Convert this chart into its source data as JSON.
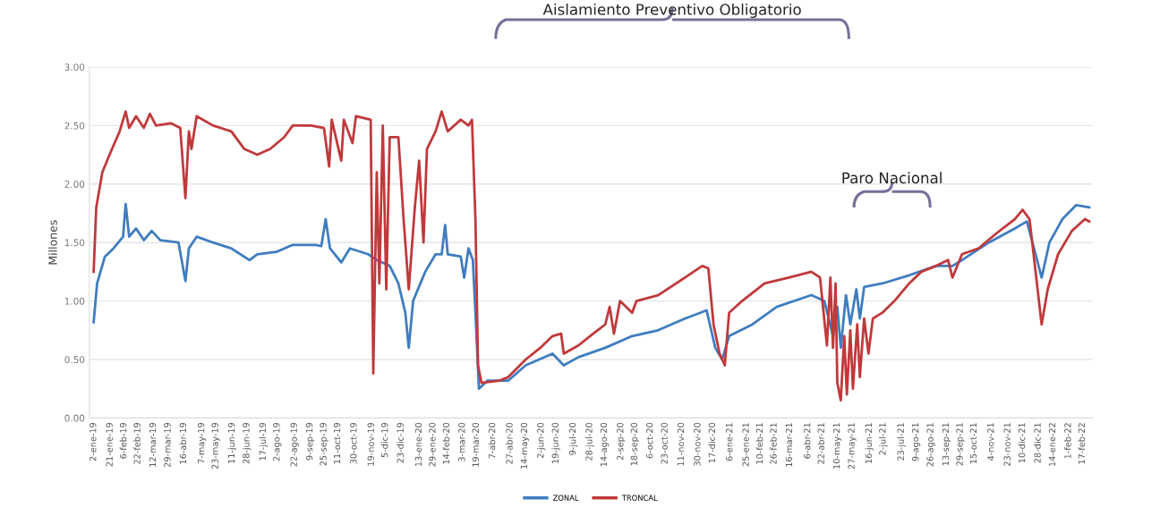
{
  "chart_data": {
    "type": "line",
    "ylabel": "Millones",
    "annotations": [
      "Aislamiento Preventivo Obligatorio",
      "Paro Nacional"
    ],
    "ylim": [
      0,
      3
    ],
    "yticks": [
      {
        "value": 0,
        "label": "0.00"
      },
      {
        "value": 0.5,
        "label": "0.50"
      },
      {
        "value": 1,
        "label": "1.00"
      },
      {
        "value": 1.5,
        "label": "1.50"
      },
      {
        "value": 2,
        "label": "2.00"
      },
      {
        "value": 2.5,
        "label": "2.50"
      },
      {
        "value": 3,
        "label": "3.00"
      }
    ],
    "xlim": [
      "2018-12-28",
      "2022-03-01"
    ],
    "xticks": [
      {
        "value": "2019-01-02",
        "label": "2-ene-19"
      },
      {
        "value": "2019-01-21",
        "label": "21-ene-19"
      },
      {
        "value": "2019-02-06",
        "label": "6-feb-19"
      },
      {
        "value": "2019-02-22",
        "label": "22-feb-19"
      },
      {
        "value": "2019-03-12",
        "label": "12-mar-19"
      },
      {
        "value": "2019-03-29",
        "label": "29-mar-19"
      },
      {
        "value": "2019-04-16",
        "label": "16-abr-19"
      },
      {
        "value": "2019-05-07",
        "label": "7-may-19"
      },
      {
        "value": "2019-05-23",
        "label": "23-may-19"
      },
      {
        "value": "2019-06-11",
        "label": "11-jun-19"
      },
      {
        "value": "2019-06-28",
        "label": "28-jun-19"
      },
      {
        "value": "2019-07-17",
        "label": "17-jul-19"
      },
      {
        "value": "2019-08-02",
        "label": "2-ago-19"
      },
      {
        "value": "2019-08-22",
        "label": "22-ago-19"
      },
      {
        "value": "2019-09-09",
        "label": "9-sep-19"
      },
      {
        "value": "2019-09-25",
        "label": "25-sep-19"
      },
      {
        "value": "2019-10-11",
        "label": "11-oct-19"
      },
      {
        "value": "2019-10-30",
        "label": "30-oct-19"
      },
      {
        "value": "2019-11-19",
        "label": "19-nov-19"
      },
      {
        "value": "2019-12-05",
        "label": "5-dic-19"
      },
      {
        "value": "2019-12-23",
        "label": "23-dic-19"
      },
      {
        "value": "2020-01-13",
        "label": "13-ene-20"
      },
      {
        "value": "2020-01-29",
        "label": "29-ene-20"
      },
      {
        "value": "2020-02-14",
        "label": "14-feb-20"
      },
      {
        "value": "2020-03-03",
        "label": "3-mar-20"
      },
      {
        "value": "2020-03-19",
        "label": "19-mar-20"
      },
      {
        "value": "2020-04-07",
        "label": "7-abr-20"
      },
      {
        "value": "2020-04-27",
        "label": "27-abr-20"
      },
      {
        "value": "2020-05-14",
        "label": "14-may-20"
      },
      {
        "value": "2020-06-02",
        "label": "2-jun-20"
      },
      {
        "value": "2020-06-19",
        "label": "19-jun-20"
      },
      {
        "value": "2020-07-09",
        "label": "9-jul-20"
      },
      {
        "value": "2020-07-28",
        "label": "28-jul-20"
      },
      {
        "value": "2020-08-14",
        "label": "14-ago-20"
      },
      {
        "value": "2020-09-02",
        "label": "2-sep-20"
      },
      {
        "value": "2020-09-18",
        "label": "18-sep-20"
      },
      {
        "value": "2020-10-06",
        "label": "6-oct-20"
      },
      {
        "value": "2020-10-23",
        "label": "23-oct-20"
      },
      {
        "value": "2020-11-11",
        "label": "11-nov-20"
      },
      {
        "value": "2020-11-30",
        "label": "30-nov-20"
      },
      {
        "value": "2020-12-17",
        "label": "17-dic-20"
      },
      {
        "value": "2021-01-06",
        "label": "6-ene-21"
      },
      {
        "value": "2021-01-25",
        "label": "25-ene-21"
      },
      {
        "value": "2021-02-10",
        "label": "10-feb-21"
      },
      {
        "value": "2021-02-26",
        "label": "26-feb-21"
      },
      {
        "value": "2021-03-16",
        "label": "16-mar-21"
      },
      {
        "value": "2021-04-06",
        "label": "6-abr-21"
      },
      {
        "value": "2021-04-22",
        "label": "22-abr-21"
      },
      {
        "value": "2021-05-10",
        "label": "10-may-21"
      },
      {
        "value": "2021-05-27",
        "label": "27-may-21"
      },
      {
        "value": "2021-06-16",
        "label": "16-jun-21"
      },
      {
        "value": "2021-07-02",
        "label": "2-jul-21"
      },
      {
        "value": "2021-07-23",
        "label": "23-jul-21"
      },
      {
        "value": "2021-08-09",
        "label": "9-ago-21"
      },
      {
        "value": "2021-08-26",
        "label": "26-ago-21"
      },
      {
        "value": "2021-09-13",
        "label": "13-sep-21"
      },
      {
        "value": "2021-09-29",
        "label": "29-sep-21"
      },
      {
        "value": "2021-10-15",
        "label": "15-oct-21"
      },
      {
        "value": "2021-11-04",
        "label": "4-nov-21"
      },
      {
        "value": "2021-11-23",
        "label": "23-nov-21"
      },
      {
        "value": "2021-12-10",
        "label": "10-dic-21"
      },
      {
        "value": "2021-12-28",
        "label": "28-dic-21"
      },
      {
        "value": "2022-01-14",
        "label": "14-ene-22"
      },
      {
        "value": "2022-02-01",
        "label": "1-feb-22"
      },
      {
        "value": "2022-02-17",
        "label": "17-feb-22"
      }
    ],
    "grid": "y",
    "legend": "bottom",
    "marker": "none",
    "line_style": "solid",
    "series": [
      {
        "name": "ZONAL",
        "color": "#3f7dc0",
        "x": [
          "2019-01-02",
          "2019-01-06",
          "2019-01-15",
          "2019-01-25",
          "2019-02-05",
          "2019-02-08",
          "2019-02-12",
          "2019-02-20",
          "2019-03-01",
          "2019-03-10",
          "2019-03-20",
          "2019-04-10",
          "2019-04-18",
          "2019-04-22",
          "2019-05-01",
          "2019-05-20",
          "2019-06-10",
          "2019-07-01",
          "2019-07-10",
          "2019-08-01",
          "2019-08-20",
          "2019-09-15",
          "2019-09-22",
          "2019-09-27",
          "2019-10-02",
          "2019-10-15",
          "2019-10-25",
          "2019-11-15",
          "2019-11-25",
          "2019-12-10",
          "2019-12-20",
          "2019-12-28",
          "2020-01-01",
          "2020-01-06",
          "2020-01-20",
          "2020-02-01",
          "2020-02-08",
          "2020-02-12",
          "2020-02-15",
          "2020-03-01",
          "2020-03-05",
          "2020-03-10",
          "2020-03-15",
          "2020-03-18",
          "2020-03-22",
          "2020-04-01",
          "2020-04-25",
          "2020-05-15",
          "2020-06-15",
          "2020-06-28",
          "2020-07-15",
          "2020-08-15",
          "2020-09-15",
          "2020-10-15",
          "2020-11-15",
          "2020-12-10",
          "2020-12-20",
          "2020-12-28",
          "2021-01-05",
          "2021-02-01",
          "2021-03-01",
          "2021-04-10",
          "2021-04-25",
          "2021-05-05",
          "2021-05-10",
          "2021-05-14",
          "2021-05-20",
          "2021-05-25",
          "2021-06-01",
          "2021-06-05",
          "2021-06-10",
          "2021-07-01",
          "2021-08-01",
          "2021-09-01",
          "2021-09-20",
          "2021-10-01",
          "2021-11-01",
          "2021-12-01",
          "2021-12-15",
          "2021-12-25",
          "2022-01-01",
          "2022-01-10",
          "2022-01-25",
          "2022-02-10",
          "2022-02-25"
        ],
        "values": [
          0.82,
          1.15,
          1.38,
          1.45,
          1.55,
          1.83,
          1.55,
          1.62,
          1.52,
          1.6,
          1.52,
          1.5,
          1.17,
          1.45,
          1.55,
          1.5,
          1.45,
          1.35,
          1.4,
          1.42,
          1.48,
          1.48,
          1.47,
          1.7,
          1.45,
          1.33,
          1.45,
          1.4,
          1.35,
          1.3,
          1.15,
          0.9,
          0.6,
          1.0,
          1.25,
          1.4,
          1.4,
          1.65,
          1.4,
          1.38,
          1.2,
          1.45,
          1.35,
          0.9,
          0.25,
          0.32,
          0.32,
          0.45,
          0.55,
          0.45,
          0.52,
          0.6,
          0.7,
          0.75,
          0.85,
          0.92,
          0.6,
          0.5,
          0.7,
          0.8,
          0.95,
          1.05,
          1.0,
          0.7,
          0.95,
          0.6,
          1.05,
          0.8,
          1.1,
          0.85,
          1.12,
          1.15,
          1.22,
          1.3,
          1.3,
          1.35,
          1.5,
          1.62,
          1.68,
          1.4,
          1.2,
          1.5,
          1.7,
          1.82,
          1.8
        ]
      },
      {
        "name": "TRONCAL",
        "color": "#c0393b",
        "x": [
          "2019-01-02",
          "2019-01-05",
          "2019-01-12",
          "2019-01-22",
          "2019-02-01",
          "2019-02-08",
          "2019-02-12",
          "2019-02-20",
          "2019-03-01",
          "2019-03-08",
          "2019-03-15",
          "2019-04-01",
          "2019-04-12",
          "2019-04-18",
          "2019-04-22",
          "2019-04-25",
          "2019-05-01",
          "2019-05-20",
          "2019-06-10",
          "2019-06-25",
          "2019-07-10",
          "2019-07-25",
          "2019-08-10",
          "2019-08-20",
          "2019-09-10",
          "2019-09-25",
          "2019-10-01",
          "2019-10-04",
          "2019-10-15",
          "2019-10-18",
          "2019-10-28",
          "2019-11-01",
          "2019-11-18",
          "2019-11-21",
          "2019-11-25",
          "2019-11-28",
          "2019-12-02",
          "2019-12-06",
          "2019-12-10",
          "2019-12-20",
          "2019-12-26",
          "2020-01-01",
          "2020-01-08",
          "2020-01-13",
          "2020-01-18",
          "2020-01-22",
          "2020-02-01",
          "2020-02-08",
          "2020-02-15",
          "2020-03-01",
          "2020-03-10",
          "2020-03-14",
          "2020-03-18",
          "2020-03-21",
          "2020-03-25",
          "2020-04-15",
          "2020-04-25",
          "2020-05-15",
          "2020-06-01",
          "2020-06-15",
          "2020-06-25",
          "2020-06-28",
          "2020-07-15",
          "2020-08-01",
          "2020-08-15",
          "2020-08-20",
          "2020-08-25",
          "2020-09-01",
          "2020-09-15",
          "2020-09-20",
          "2020-10-15",
          "2020-11-15",
          "2020-12-05",
          "2020-12-12",
          "2020-12-18",
          "2020-12-25",
          "2020-12-31",
          "2021-01-05",
          "2021-01-20",
          "2021-02-15",
          "2021-03-15",
          "2021-04-10",
          "2021-04-20",
          "2021-04-28",
          "2021-05-02",
          "2021-05-05",
          "2021-05-08",
          "2021-05-10",
          "2021-05-14",
          "2021-05-18",
          "2021-05-21",
          "2021-05-25",
          "2021-05-28",
          "2021-06-02",
          "2021-06-05",
          "2021-06-10",
          "2021-06-15",
          "2021-06-20",
          "2021-07-01",
          "2021-07-15",
          "2021-08-01",
          "2021-08-15",
          "2021-09-01",
          "2021-09-15",
          "2021-09-20",
          "2021-10-01",
          "2021-10-20",
          "2021-11-10",
          "2021-12-01",
          "2021-12-10",
          "2021-12-18",
          "2021-12-25",
          "2022-01-01",
          "2022-01-08",
          "2022-01-20",
          "2022-02-05",
          "2022-02-20",
          "2022-02-25"
        ],
        "values": [
          1.25,
          1.8,
          2.1,
          2.28,
          2.45,
          2.62,
          2.48,
          2.58,
          2.48,
          2.6,
          2.5,
          2.52,
          2.48,
          1.88,
          2.45,
          2.3,
          2.58,
          2.5,
          2.45,
          2.3,
          2.25,
          2.3,
          2.4,
          2.5,
          2.5,
          2.48,
          2.15,
          2.55,
          2.2,
          2.55,
          2.35,
          2.58,
          2.55,
          0.38,
          2.1,
          1.15,
          2.5,
          1.1,
          2.4,
          2.4,
          1.7,
          1.1,
          1.8,
          2.2,
          1.5,
          2.3,
          2.45,
          2.62,
          2.45,
          2.55,
          2.5,
          2.55,
          1.7,
          0.45,
          0.3,
          0.32,
          0.35,
          0.5,
          0.6,
          0.7,
          0.72,
          0.55,
          0.62,
          0.72,
          0.8,
          0.95,
          0.72,
          1.0,
          0.9,
          1.0,
          1.05,
          1.2,
          1.3,
          1.28,
          0.8,
          0.55,
          0.45,
          0.9,
          1.0,
          1.15,
          1.2,
          1.25,
          1.2,
          0.62,
          1.2,
          0.6,
          1.15,
          0.3,
          0.15,
          0.7,
          0.2,
          0.75,
          0.25,
          0.8,
          0.35,
          0.85,
          0.55,
          0.85,
          0.9,
          1.0,
          1.15,
          1.25,
          1.3,
          1.35,
          1.2,
          1.4,
          1.45,
          1.58,
          1.7,
          1.78,
          1.7,
          1.25,
          0.8,
          1.1,
          1.4,
          1.6,
          1.7,
          1.68
        ]
      }
    ]
  }
}
